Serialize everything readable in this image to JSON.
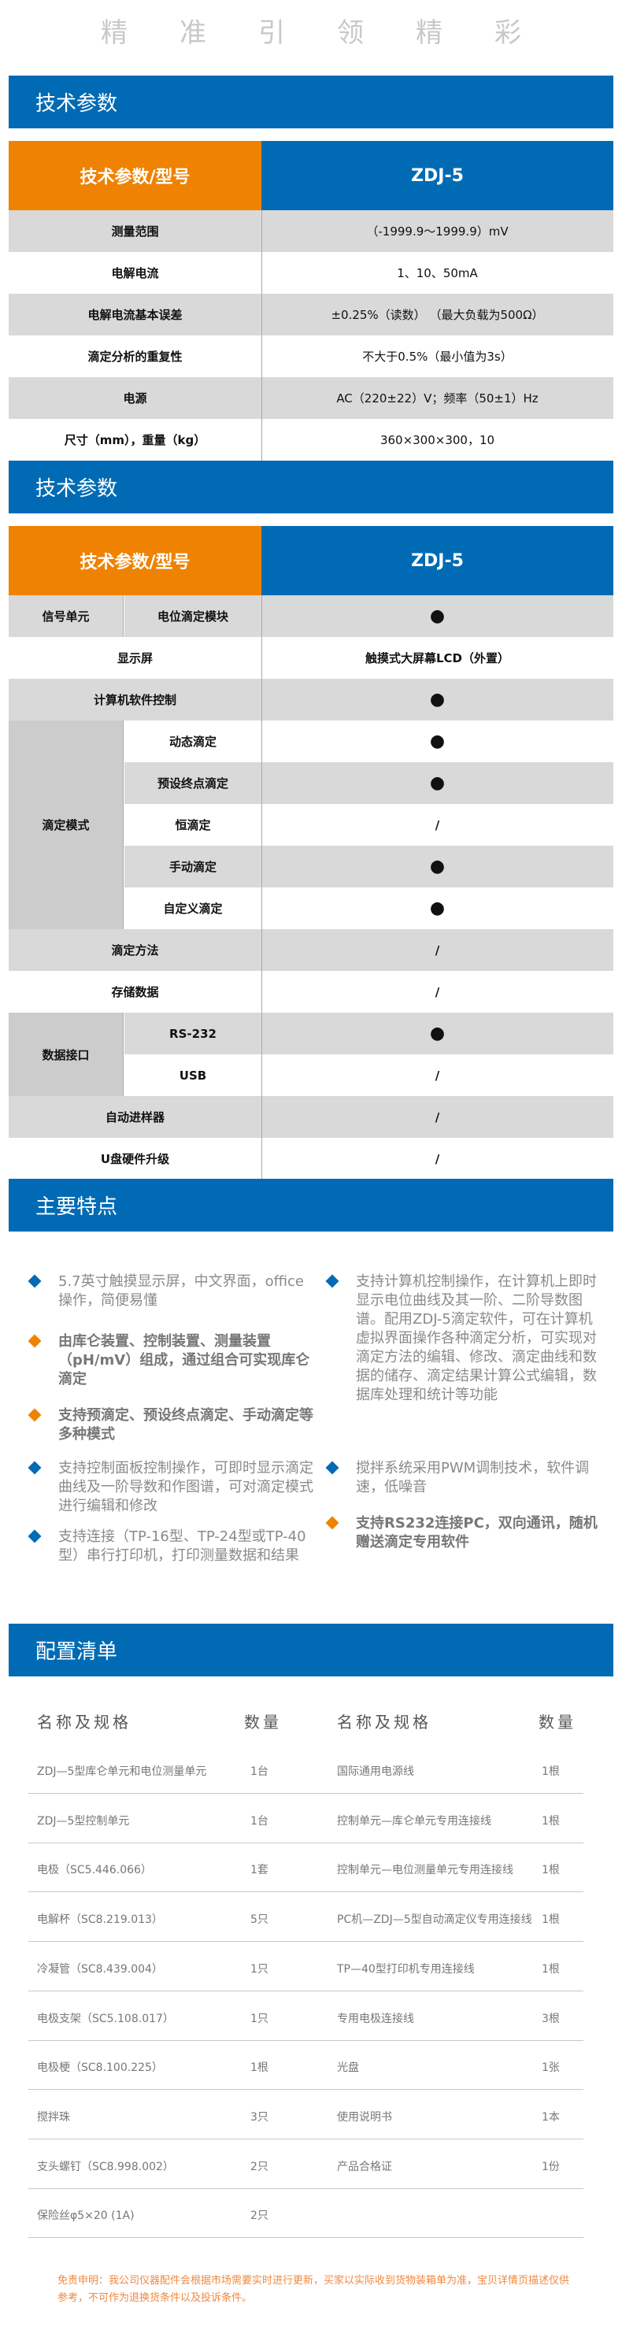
{
  "slogan": [
    "精",
    "准",
    "引",
    "领",
    "精",
    "彩"
  ],
  "colors": {
    "blue": "#006bb4",
    "orange": "#ef8200",
    "row_gray": "#d9d9d9",
    "group_gray": "#cccccc"
  },
  "spec1": {
    "title": "技术参数",
    "header_left": "技术参数/型号",
    "header_right": "ZDJ-5",
    "rows": [
      {
        "label": "测量范围",
        "value": "（-1999.9～1999.9）mV"
      },
      {
        "label": "电解电流",
        "value": "1、10、50mA"
      },
      {
        "label": "电解电流基本误差",
        "value": "±0.25%（读数）  （最大负载为500Ω）"
      },
      {
        "label": "滴定分析的重复性",
        "value": "不大于0.5%（最小值为3s）"
      },
      {
        "label": "电源",
        "value": "AC（220±22）V；频率（50±1）Hz"
      },
      {
        "label": "尺寸（mm），重量（kg）",
        "value": "360×300×300，10"
      }
    ]
  },
  "spec2": {
    "title": "技术参数",
    "header_left": "技术参数/型号",
    "header_right": "ZDJ-5",
    "rows": [
      {
        "group": "信号单元",
        "label": "电位滴定模块",
        "value": "●"
      },
      {
        "label": "显示屏",
        "value": "触摸式大屏幕LCD（外置）"
      },
      {
        "label": "计算机软件控制",
        "value": "●"
      },
      {
        "group": "滴定模式",
        "label": "动态滴定",
        "value": "●"
      },
      {
        "group": "滴定模式",
        "label": "预设终点滴定",
        "value": "●"
      },
      {
        "group": "滴定模式",
        "label": "恒滴定",
        "value": "/"
      },
      {
        "group": "滴定模式",
        "label": "手动滴定",
        "value": "●"
      },
      {
        "group": "滴定模式",
        "label": "自定义滴定",
        "value": "●"
      },
      {
        "label": "滴定方法",
        "value": "/"
      },
      {
        "label": "存储数据",
        "value": "/"
      },
      {
        "group": "数据接口",
        "label": "RS-232",
        "value": "●"
      },
      {
        "group": "数据接口",
        "label": "USB",
        "value": "/"
      },
      {
        "label": "自动进样器",
        "value": "/"
      },
      {
        "label": "U盘硬件升级",
        "value": "/"
      }
    ]
  },
  "features": {
    "title": "主要特点",
    "left": [
      {
        "text": "5.7英寸触摸显示屏，中文界面，office操作，简便易懂",
        "bullet": "blue"
      },
      {
        "text": "由库仑装置、控制装置、测量装置（pH/mV）组成，通过组合可实现库仑滴定",
        "bullet": "orange"
      },
      {
        "text": "支持预滴定、预设终点滴定、手动滴定等多种模式",
        "bullet": "orange"
      },
      {
        "text": "支持控制面板控制操作，可即时显示滴定曲线及一阶导数和作图谱，可对滴定模式进行编辑和修改",
        "bullet": "blue"
      },
      {
        "text": "支持连接（TP-16型、TP-24型或TP-40型）串行打印机，打印测量数据和结果",
        "bullet": "blue"
      }
    ],
    "right": [
      {
        "text": "支持计算机控制操作，在计算机上即时显示电位曲线及其一阶、二阶导数图谱。配用ZDJ-5滴定软件，可在计算机虚拟界面操作各种滴定分析，可实现对滴定方法的编辑、修改、滴定曲线和数据的储存、滴定结果计算公式编辑，数据库处理和统计等功能",
        "bullet": "blue"
      },
      {
        "text": "搅拌系统采用PWM调制技术，软件调速，低噪音",
        "bullet": "blue"
      },
      {
        "text": "支持RS232连接PC，双向通讯，随机赠送滴定专用软件",
        "bullet": "orange"
      }
    ]
  },
  "config": {
    "title": "配置清单",
    "col_name": "名称及规格",
    "col_qty": "数量",
    "rows": [
      {
        "name1": "ZDJ—5型库仑单元和电位测量单元",
        "qty1": "1台",
        "name2": "国际通用电源线",
        "qty2": "1根"
      },
      {
        "name1": "ZDJ—5型控制单元",
        "qty1": "1台",
        "name2": "控制单元—库仑单元专用连接线",
        "qty2": "1根"
      },
      {
        "name1": "电极（SC5.446.066）",
        "qty1": "1套",
        "name2": "控制单元—电位测量单元专用连接线",
        "qty2": "1根"
      },
      {
        "name1": "电解杯（SC8.219.013）",
        "qty1": "5只",
        "name2": "PC机—ZDJ—5型自动滴定仪专用连接线",
        "qty2": "1根"
      },
      {
        "name1": "冷凝管（SC8.439.004）",
        "qty1": "1只",
        "name2": "TP—40型打印机专用连接线",
        "qty2": "1根"
      },
      {
        "name1": "电极支架（SC5.108.017）",
        "qty1": "1只",
        "name2": "专用电极连接线",
        "qty2": "3根"
      },
      {
        "name1": "电极梗（SC8.100.225）",
        "qty1": "1根",
        "name2": "光盘",
        "qty2": "1张"
      },
      {
        "name1": "搅拌珠",
        "qty1": "3只",
        "name2": "使用说明书",
        "qty2": "1本"
      },
      {
        "name1": "支头螺钉（SC8.998.002）",
        "qty1": "2只",
        "name2": "产品合格证",
        "qty2": "1份"
      },
      {
        "name1": "保险丝φ5×20 (1A)",
        "qty1": "2只",
        "name2": "",
        "qty2": ""
      }
    ]
  },
  "disclaimer": "免责申明：我公司仪器配件会根据市场需要实时进行更新，买家以实际收到货物装箱单为准，宝贝详情页描述仅供参考，不可作为退换货条件以及投诉条件。"
}
